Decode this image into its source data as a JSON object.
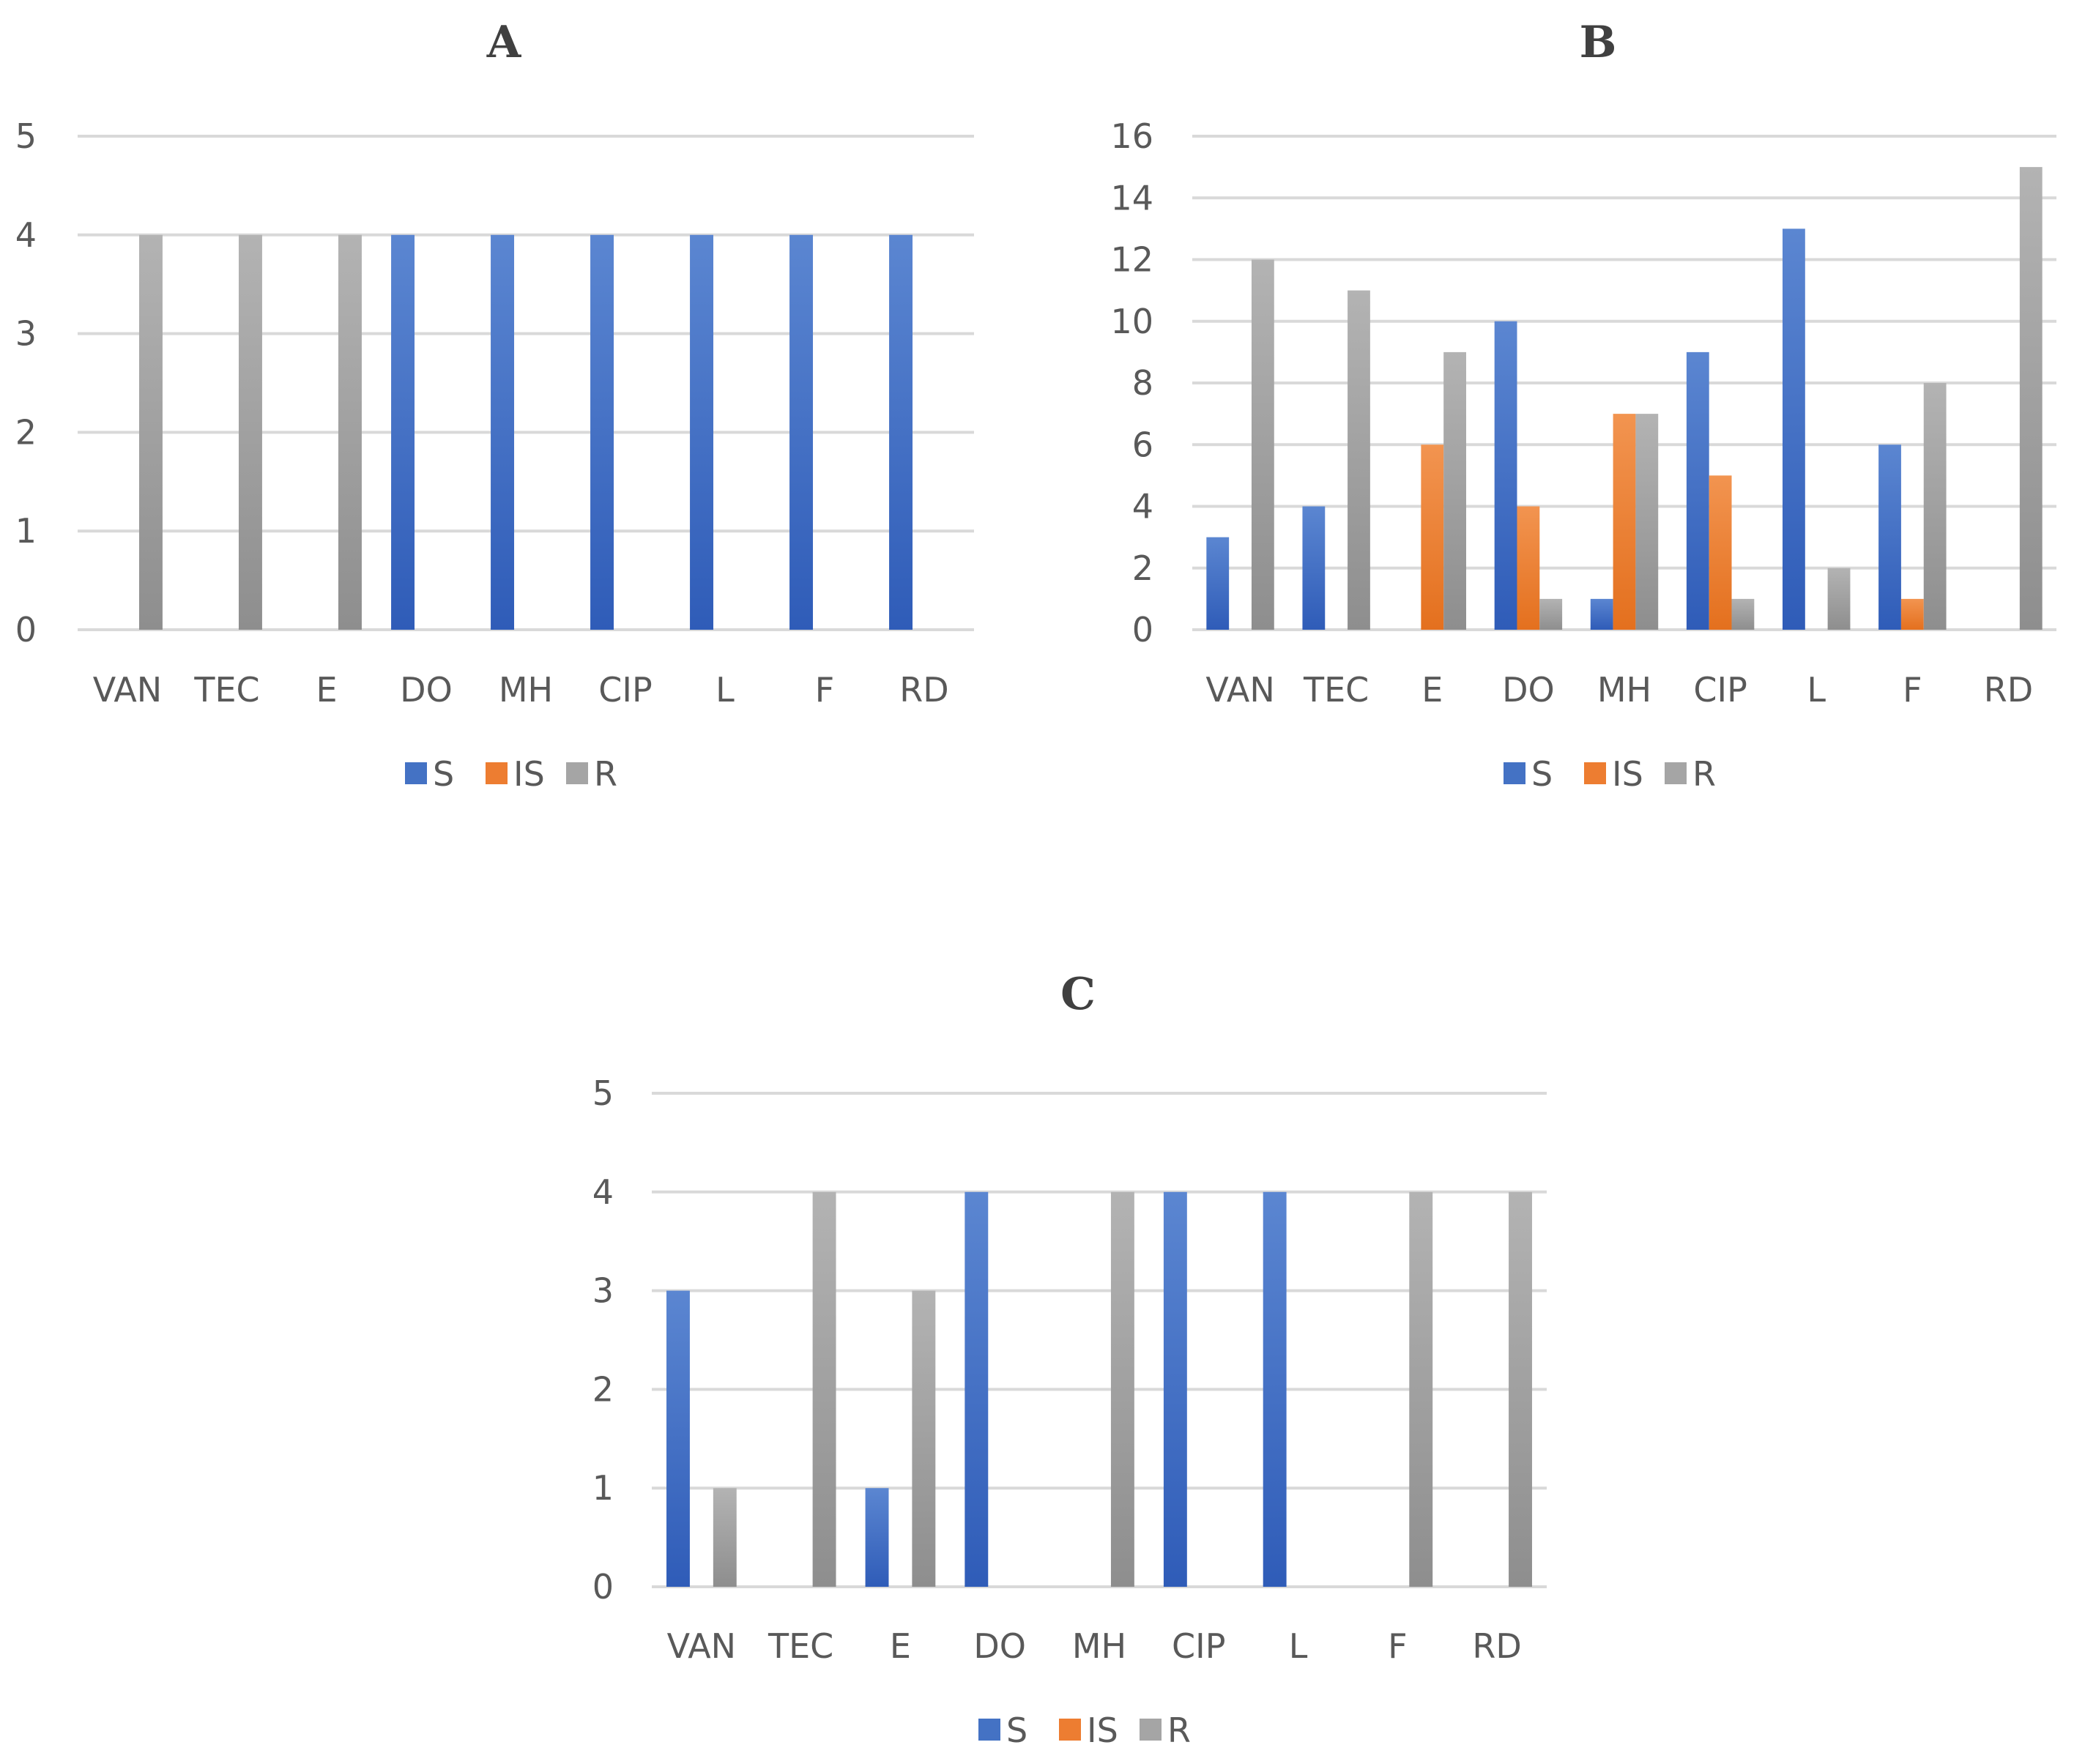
{
  "colors": {
    "S": "#4472c4",
    "IS": "#ed7d31",
    "R": "#a5a5a5"
  },
  "chart_data": [
    {
      "type": "bar",
      "title": "A",
      "categories": [
        "VAN",
        "TEC",
        "E",
        "DO",
        "MH",
        "CIP",
        "L",
        "F",
        "RD"
      ],
      "ylim": [
        0,
        5
      ],
      "yticks": [
        0,
        1,
        2,
        3,
        4,
        5
      ],
      "grid": true,
      "legend": "bottom",
      "series": [
        {
          "name": "S",
          "values": [
            0,
            0,
            0,
            4,
            4,
            4,
            4,
            4,
            4
          ]
        },
        {
          "name": "IS",
          "values": [
            0,
            0,
            0,
            0,
            0,
            0,
            0,
            0,
            0
          ]
        },
        {
          "name": "R",
          "values": [
            4,
            4,
            4,
            0,
            0,
            0,
            0,
            0,
            0
          ]
        }
      ]
    },
    {
      "type": "bar",
      "title": "B",
      "categories": [
        "VAN",
        "TEC",
        "E",
        "DO",
        "MH",
        "CIP",
        "L",
        "F",
        "RD"
      ],
      "ylim": [
        0,
        16
      ],
      "yticks": [
        0,
        2,
        4,
        6,
        8,
        10,
        12,
        14,
        16
      ],
      "grid": true,
      "legend": "bottom",
      "series": [
        {
          "name": "S",
          "values": [
            3,
            4,
            0,
            10,
            1,
            9,
            13,
            6,
            0
          ]
        },
        {
          "name": "IS",
          "values": [
            0,
            0,
            6,
            4,
            7,
            5,
            0,
            1,
            0
          ]
        },
        {
          "name": "R",
          "values": [
            12,
            11,
            9,
            1,
            7,
            1,
            2,
            8,
            15
          ]
        }
      ]
    },
    {
      "type": "bar",
      "title": "C",
      "categories": [
        "VAN",
        "TEC",
        "E",
        "DO",
        "MH",
        "CIP",
        "L",
        "F",
        "RD"
      ],
      "ylim": [
        0,
        5
      ],
      "yticks": [
        0,
        1,
        2,
        3,
        4,
        5
      ],
      "grid": true,
      "legend": "bottom",
      "series": [
        {
          "name": "S",
          "values": [
            3,
            0,
            1,
            4,
            0,
            4,
            4,
            0,
            0
          ]
        },
        {
          "name": "IS",
          "values": [
            0,
            0,
            0,
            0,
            0,
            0,
            0,
            0,
            0
          ]
        },
        {
          "name": "R",
          "values": [
            1,
            4,
            3,
            0,
            4,
            0,
            0,
            4,
            4
          ]
        }
      ]
    }
  ]
}
